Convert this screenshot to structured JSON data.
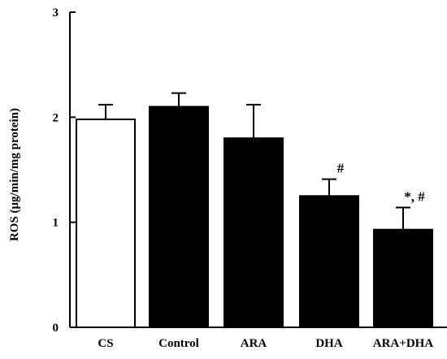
{
  "chart_data": {
    "type": "bar",
    "title": "",
    "xlabel": "",
    "ylabel": "ROS (μg/min/mg protein)",
    "ylim": [
      0,
      3
    ],
    "yticks": [
      "0",
      "1",
      "2",
      "3"
    ],
    "categories": [
      "CS",
      "Control",
      "ARA",
      "DHA",
      "ARA+DHA"
    ],
    "values": [
      1.98,
      2.1,
      1.8,
      1.25,
      0.93
    ],
    "errors": [
      0.14,
      0.13,
      0.32,
      0.16,
      0.21
    ],
    "fills": [
      "#ffffff",
      "#000000",
      "#000000",
      "#000000",
      "#000000"
    ],
    "annotations": [
      "",
      "",
      "",
      "#",
      "*, #"
    ],
    "grid": false
  }
}
